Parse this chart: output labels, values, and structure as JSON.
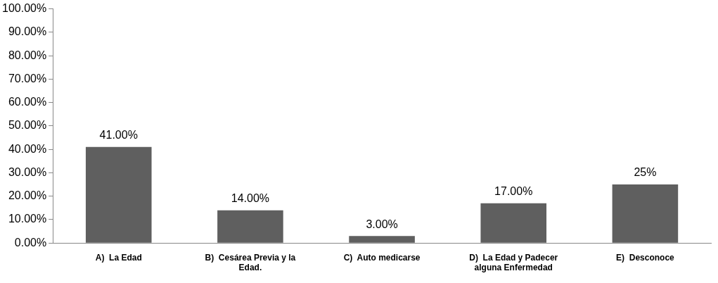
{
  "chart_data": {
    "type": "bar",
    "categories": [
      "A)  La Edad",
      "B)  Cesárea Previa y la Edad.",
      "C)  Auto medicarse",
      "D)  La Edad y Padecer alguna Enfermedad",
      "E)  Desconoce"
    ],
    "values": [
      41,
      14,
      3,
      17,
      25
    ],
    "value_labels": [
      "41.00%",
      "14.00%",
      "3.00%",
      "17.00%",
      "25%"
    ],
    "color": "#5f5f5f",
    "ylim": [
      0,
      100
    ],
    "yticks": [
      {
        "value": 0,
        "label": "0.00%"
      },
      {
        "value": 10,
        "label": "10.00%"
      },
      {
        "value": 20,
        "label": "20.00%"
      },
      {
        "value": 30,
        "label": "30.00%"
      },
      {
        "value": 40,
        "label": "40.00%"
      },
      {
        "value": 50,
        "label": "50.00%"
      },
      {
        "value": 60,
        "label": "60.00%"
      },
      {
        "value": 70,
        "label": "70.00%"
      },
      {
        "value": 80,
        "label": "80.00%"
      },
      {
        "value": 90,
        "label": "90.00%"
      },
      {
        "value": 100,
        "label": "100.00%"
      }
    ],
    "grid": false,
    "legend": false
  }
}
